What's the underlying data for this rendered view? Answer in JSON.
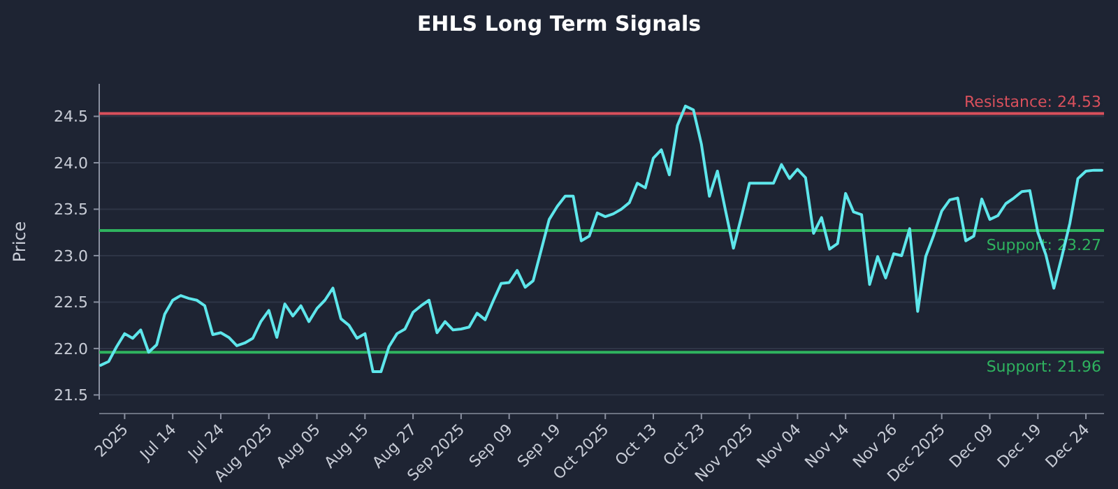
{
  "chart_data": {
    "type": "line",
    "title": "EHLS Long Term Signals",
    "ylabel": "Price",
    "categories": [
      null,
      null,
      null,
      "2025",
      null,
      null,
      null,
      null,
      null,
      "Jul 14",
      null,
      null,
      null,
      null,
      null,
      "Jul 24",
      null,
      null,
      null,
      null,
      null,
      "Aug 2025",
      null,
      null,
      null,
      null,
      null,
      "Aug 05",
      null,
      null,
      null,
      null,
      null,
      "Aug 15",
      null,
      null,
      null,
      null,
      null,
      "Aug 27",
      null,
      null,
      null,
      null,
      null,
      "Sep 2025",
      null,
      null,
      null,
      null,
      null,
      "Sep 09",
      null,
      null,
      null,
      null,
      null,
      "Sep 19",
      null,
      null,
      null,
      null,
      null,
      "Oct 2025",
      null,
      null,
      null,
      null,
      null,
      "Oct 13",
      null,
      null,
      null,
      null,
      null,
      "Oct 23",
      null,
      null,
      null,
      null,
      null,
      "Nov 2025",
      null,
      null,
      null,
      null,
      null,
      "Nov 04",
      null,
      null,
      null,
      null,
      null,
      "Nov 14",
      null,
      null,
      null,
      null,
      null,
      "Nov 26",
      null,
      null,
      null,
      null,
      null,
      "Dec 2025",
      null,
      null,
      null,
      null,
      null,
      "Dec 09",
      null,
      null,
      null,
      null,
      null,
      "Dec 19",
      null,
      null,
      null,
      null,
      null,
      "Dec 24",
      null,
      null
    ],
    "series": [
      {
        "color": "#5ee6eb",
        "values": [
          21.82,
          21.86,
          22.02,
          22.16,
          22.11,
          22.2,
          21.96,
          22.04,
          22.37,
          22.52,
          22.57,
          22.54,
          22.52,
          22.46,
          22.15,
          22.17,
          22.12,
          22.03,
          22.06,
          22.11,
          22.29,
          22.41,
          22.12,
          22.48,
          22.35,
          22.46,
          22.29,
          22.43,
          22.52,
          22.65,
          22.32,
          22.25,
          22.11,
          22.16,
          21.75,
          21.75,
          22.02,
          22.16,
          22.21,
          22.39,
          22.46,
          22.52,
          22.17,
          22.29,
          22.2,
          22.21,
          22.23,
          22.38,
          22.31,
          22.51,
          22.7,
          22.71,
          22.84,
          22.66,
          22.73,
          23.06,
          23.39,
          23.53,
          23.64,
          23.64,
          23.16,
          23.21,
          23.46,
          23.42,
          23.45,
          23.5,
          23.57,
          23.78,
          23.73,
          24.05,
          24.14,
          23.87,
          24.4,
          24.61,
          24.57,
          24.2,
          23.64,
          23.91,
          23.49,
          23.08,
          23.42,
          23.78,
          23.78,
          23.78,
          23.78,
          23.98,
          23.83,
          23.93,
          23.84,
          23.24,
          23.41,
          23.07,
          23.13,
          23.67,
          23.47,
          23.44,
          22.69,
          22.99,
          22.76,
          23.02,
          23.0,
          23.29,
          22.4,
          22.99,
          23.22,
          23.48,
          23.6,
          23.62,
          23.16,
          23.21,
          23.61,
          23.39,
          23.43,
          23.56,
          23.62,
          23.69,
          23.7,
          23.25,
          23.01,
          22.65,
          22.99,
          23.35,
          23.83,
          23.91,
          23.92,
          23.92
        ]
      }
    ],
    "ylim": [
      21.45,
      24.85
    ],
    "yticks": [
      21.5,
      {
        "value": 22,
        "label": "22.0"
      },
      22.5,
      {
        "value": 23,
        "label": "23.0"
      },
      23.5,
      {
        "value": 24,
        "label": "24.0"
      },
      24.5
    ],
    "grid": "y",
    "ref_lines": [
      {
        "axis": "y",
        "value": 24.53,
        "label": "Resistance: 24.53",
        "color": "#d9505c"
      },
      {
        "axis": "y",
        "value": 23.27,
        "label": "Support: 23.27",
        "color": "#2fb35f"
      },
      {
        "axis": "y",
        "value": 21.96,
        "label": "Support: 21.96",
        "color": "#2fb35f"
      }
    ]
  }
}
